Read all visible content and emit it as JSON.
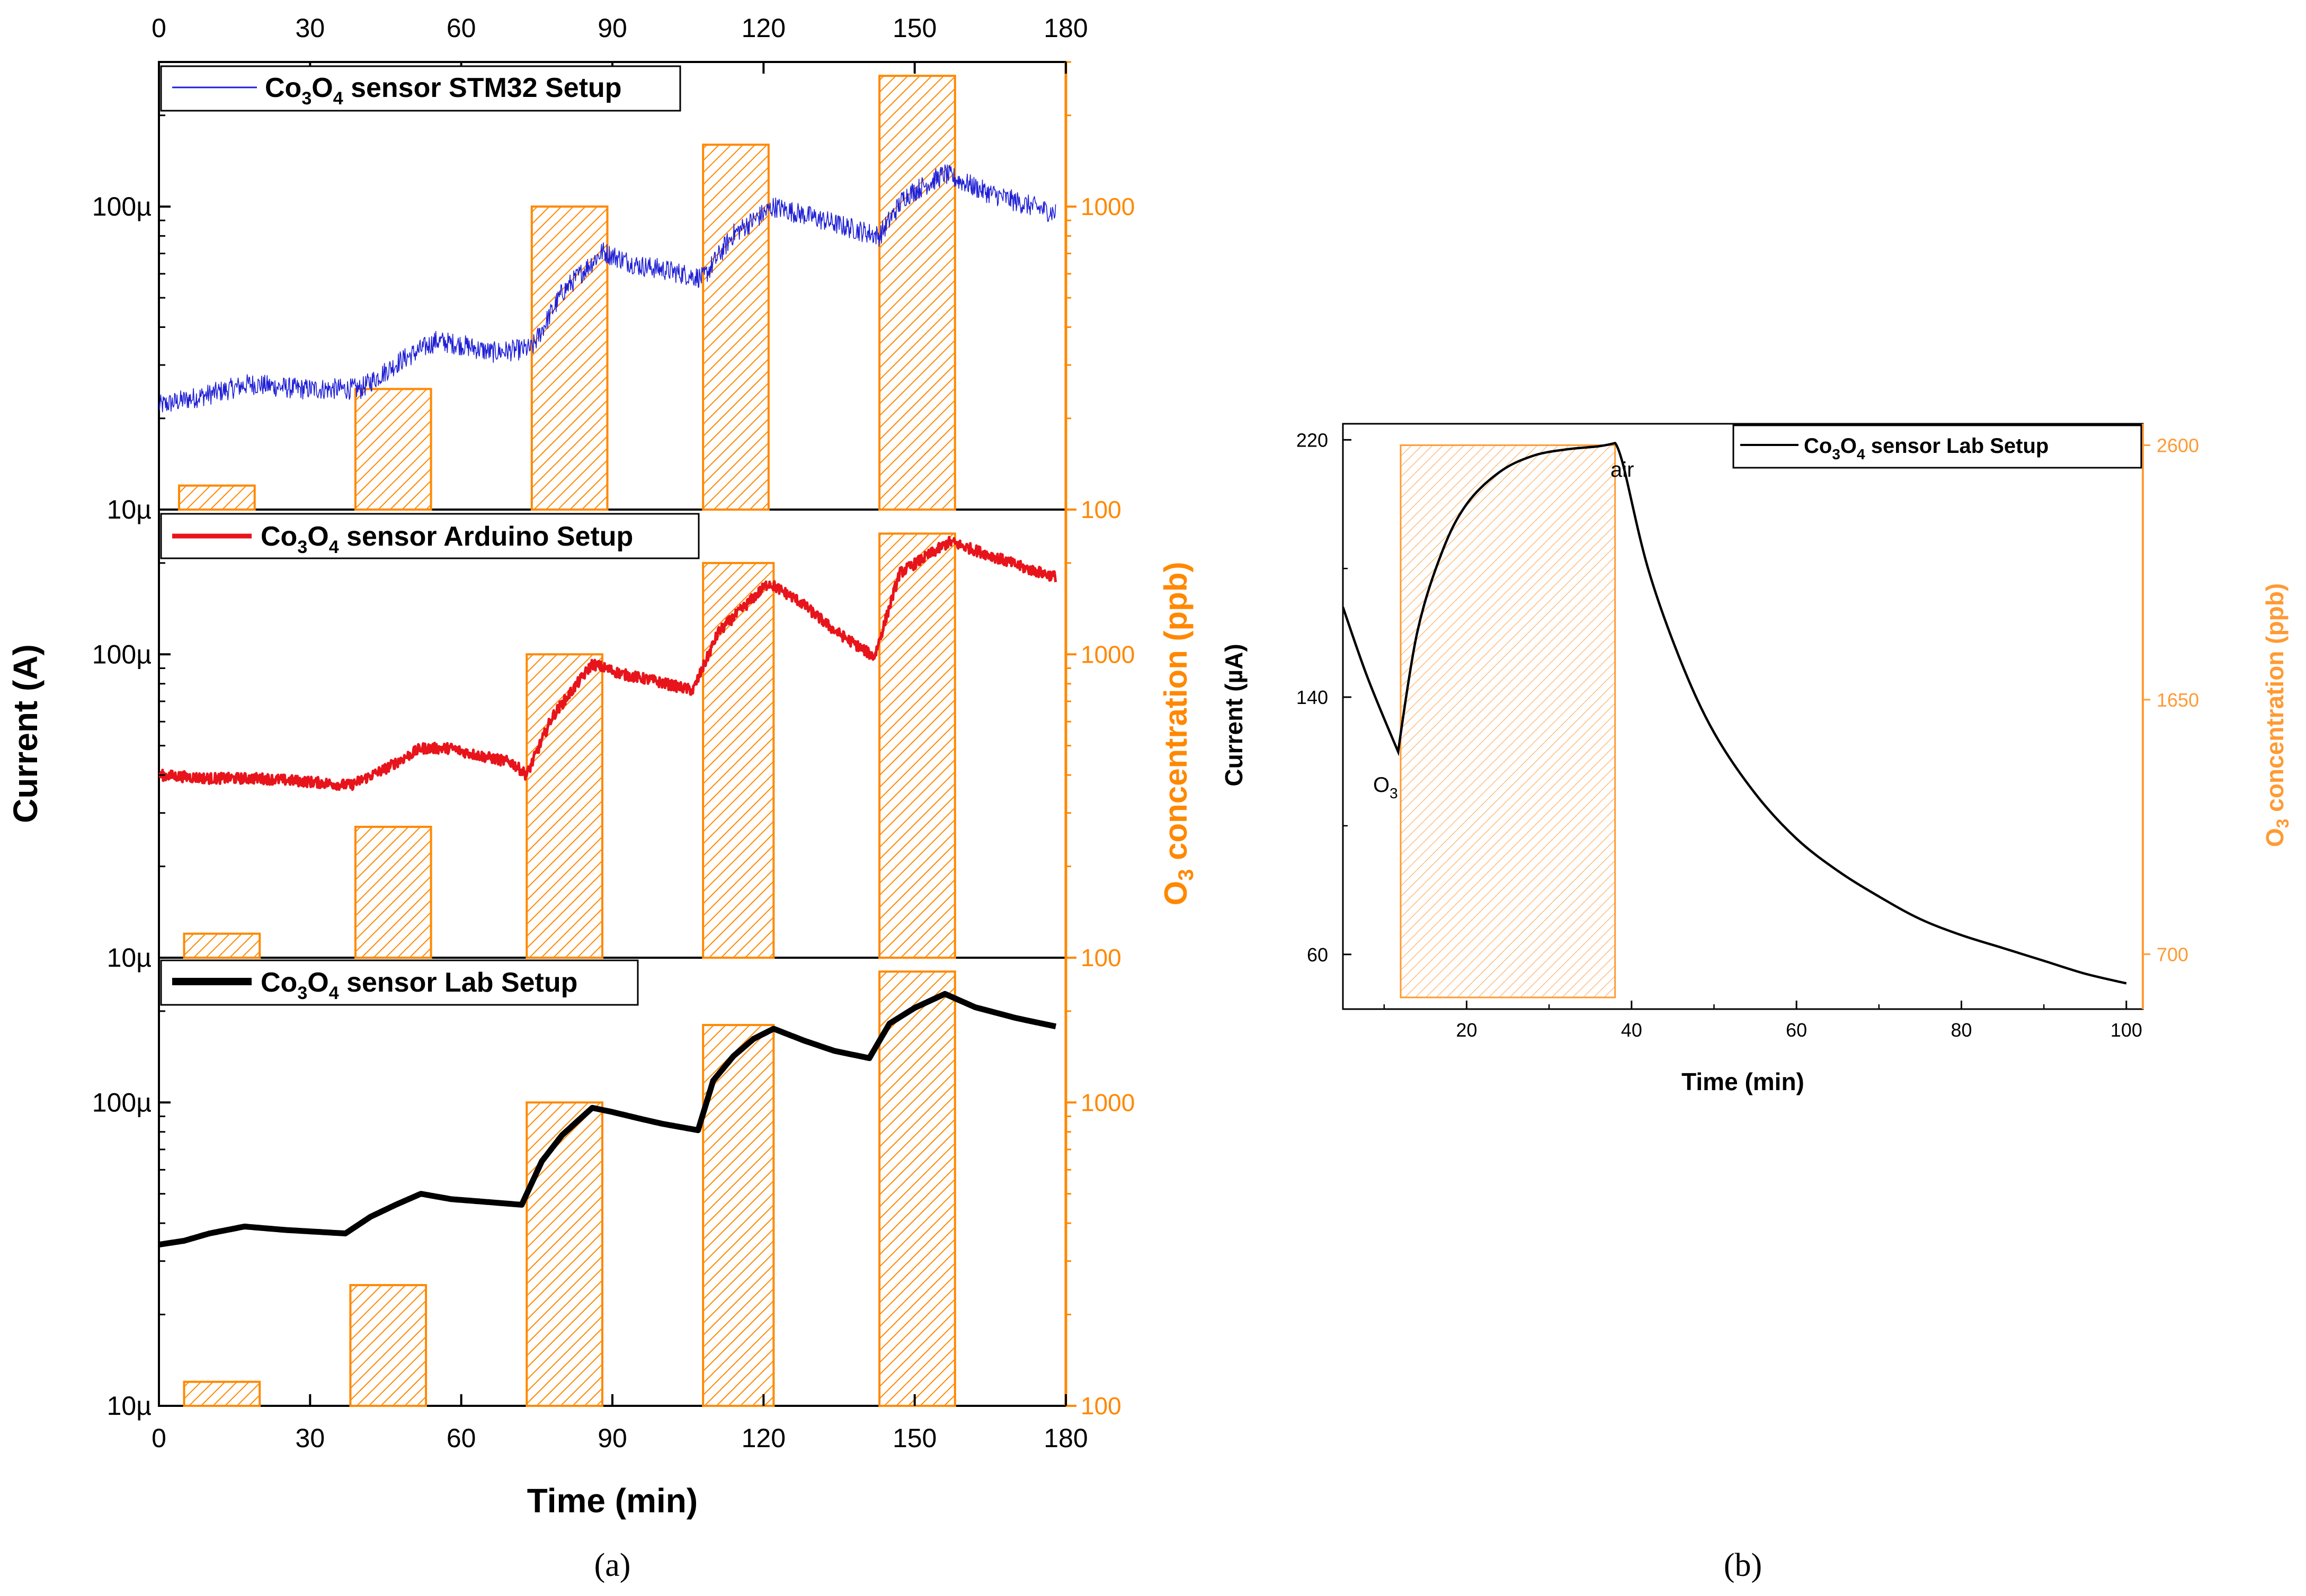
{
  "chart_data": [
    {
      "panel": "a",
      "type": "line",
      "panel_label": "(a)",
      "xlabel": "Time (min)",
      "ylabel": "Current (A)",
      "y2label": "O3 concentration (ppb)",
      "y2label_prefix": "O",
      "y2label_sub": "3",
      "y2label_suffix": " concentration (ppb)",
      "xlim": [
        0,
        180
      ],
      "xticks": [
        0,
        30,
        60,
        90,
        120,
        150,
        180
      ],
      "y_scale": "log",
      "ylim": [
        1e-05,
        0.0003
      ],
      "y2lim": [
        100,
        3000
      ],
      "yticks": [
        {
          "value": 1e-05,
          "label": "10µ"
        },
        {
          "value": 0.0001,
          "label": "100µ"
        }
      ],
      "y2ticks": [
        {
          "value": 100,
          "label": "100"
        },
        {
          "value": 1000,
          "label": "1000"
        }
      ],
      "colors": {
        "ozone_bar": "#ff8800",
        "stm32": "#1f1fd6",
        "arduino": "#e8141b",
        "lab": "#000000"
      },
      "subplots": [
        {
          "legend": "Co3O4 sensor STM32 Setup",
          "legend_parts": [
            "Co",
            "3",
            "O",
            "4",
            " sensor STM32 Setup"
          ],
          "color": "#1f1fd6",
          "line_style": "thin-noisy",
          "series": {
            "x": [
              0,
              10,
              18,
              28,
              40,
              48,
              55,
              60,
              66,
              74,
              80,
              88,
              95,
              100,
              108,
              114,
              122,
              130,
              136,
              143,
              148,
              156,
              164,
              170,
              178
            ],
            "y": [
              2.2e-05,
              2.4e-05,
              2.6e-05,
              2.5e-05,
              2.5e-05,
              3.1e-05,
              3.6e-05,
              3.5e-05,
              3.3e-05,
              3.4e-05,
              5.2e-05,
              7.1e-05,
              6.4e-05,
              6.2e-05,
              5.8e-05,
              8.1e-05,
              0.0001,
              9.2e-05,
              8.6e-05,
              8e-05,
              0.000108,
              0.000128,
              0.000112,
              0.000104,
              9.5e-05
            ]
          },
          "ozone_bars": [
            {
              "start": 4,
              "end": 19,
              "ppb": 120
            },
            {
              "start": 39,
              "end": 54,
              "ppb": 250
            },
            {
              "start": 74,
              "end": 89,
              "ppb": 1000
            },
            {
              "start": 108,
              "end": 121,
              "ppb": 1600
            },
            {
              "start": 143,
              "end": 158,
              "ppb": 2700
            }
          ]
        },
        {
          "legend": "Co3O4 sensor Arduino Setup",
          "legend_parts": [
            "Co",
            "3",
            "O",
            "4",
            " sensor Arduino Setup"
          ],
          "color": "#e8141b",
          "line_style": "medium-noisy",
          "series": {
            "x": [
              0,
              10,
              20,
              30,
              38,
              45,
              52,
              58,
              62,
              70,
              73,
              78,
              86,
              92,
              98,
              106,
              111,
              121,
              127,
              134,
              142,
              147,
              157,
              165,
              172,
              178
            ],
            "y": [
              4e-05,
              3.9e-05,
              3.9e-05,
              3.8e-05,
              3.7e-05,
              4.2e-05,
              4.9e-05,
              4.9e-05,
              4.7e-05,
              4.4e-05,
              4e-05,
              6.2e-05,
              9.3e-05,
              8.6e-05,
              8.2e-05,
              7.6e-05,
              0.000118,
              0.000172,
              0.00015,
              0.00012,
              9.8e-05,
              0.000185,
              0.000235,
              0.000212,
              0.000192,
              0.00018
            ]
          },
          "ozone_bars": [
            {
              "start": 5,
              "end": 20,
              "ppb": 120
            },
            {
              "start": 39,
              "end": 54,
              "ppb": 270
            },
            {
              "start": 73,
              "end": 88,
              "ppb": 1000
            },
            {
              "start": 108,
              "end": 122,
              "ppb": 2000
            },
            {
              "start": 143,
              "end": 158,
              "ppb": 2500
            }
          ]
        },
        {
          "legend": "Co3O4 sensor Lab Setup",
          "legend_parts": [
            "Co",
            "3",
            "O",
            "4",
            " sensor Lab Setup"
          ],
          "color": "#000000",
          "line_style": "thick-smooth",
          "series": {
            "x": [
              0,
              5,
              10,
              17,
              25,
              37,
              42,
              47,
              52,
              58,
              65,
              72,
              76,
              80,
              86,
              90,
              96,
              100,
              107,
              110,
              114,
              118,
              122,
              128,
              134,
              141,
              145,
              150,
              156,
              162,
              170,
              178
            ],
            "y": [
              3.4e-05,
              3.5e-05,
              3.7e-05,
              3.9e-05,
              3.8e-05,
              3.7e-05,
              4.2e-05,
              4.6e-05,
              5e-05,
              4.8e-05,
              4.7e-05,
              4.6e-05,
              6.4e-05,
              7.8e-05,
              9.6e-05,
              9.3e-05,
              8.8e-05,
              8.5e-05,
              8.1e-05,
              0.000118,
              0.000142,
              0.000162,
              0.000175,
              0.00016,
              0.000148,
              0.00014,
              0.000182,
              0.000205,
              0.000228,
              0.000206,
              0.00019,
              0.000178
            ]
          },
          "ozone_bars": [
            {
              "start": 5,
              "end": 20,
              "ppb": 120
            },
            {
              "start": 38,
              "end": 53,
              "ppb": 250
            },
            {
              "start": 73,
              "end": 88,
              "ppb": 1000
            },
            {
              "start": 108,
              "end": 122,
              "ppb": 1800
            },
            {
              "start": 143,
              "end": 158,
              "ppb": 2700
            }
          ]
        }
      ]
    },
    {
      "panel": "b",
      "type": "line",
      "panel_label": "(b)",
      "xlabel": "Time (min)",
      "ylabel": "Current (µA)",
      "ylabel_parts": [
        "Current (",
        "µ",
        "A)"
      ],
      "y2label": "O3 concentration (ppb)",
      "y2label_prefix": "O",
      "y2label_sub": "3",
      "y2label_suffix": " concentration (ppb)",
      "legend": "Co3O4 sensor Lab Setup",
      "legend_parts": [
        "Co",
        "3",
        "O",
        "4",
        " sensor Lab Setup"
      ],
      "xlim": [
        5,
        102
      ],
      "xticks": [
        20,
        40,
        60,
        80,
        100
      ],
      "ylim": [
        43,
        225
      ],
      "yticks": [
        60,
        140,
        220
      ],
      "y2lim": [
        495,
        2680
      ],
      "y2ticks": [
        700,
        1650,
        2600
      ],
      "color": "#000000",
      "bar_color": "#ff9a33",
      "series": {
        "x": [
          5,
          8,
          11.7,
          14,
          17,
          20,
          24,
          28,
          32,
          36,
          38,
          39,
          42,
          46,
          50,
          55,
          60,
          65,
          70,
          75,
          80,
          85,
          90,
          95,
          100
        ],
        "y": [
          168,
          146,
          123,
          160,
          185,
          200,
          210,
          215,
          217,
          218,
          219,
          212,
          180,
          151,
          129,
          110,
          96,
          86,
          78,
          71,
          66,
          62,
          58,
          54,
          51
        ],
        "y2_ppb": [
          null,
          null,
          null,
          null,
          null,
          null,
          null,
          null,
          null,
          null,
          null,
          null,
          null,
          null,
          null,
          null,
          null,
          null,
          null,
          null,
          null,
          null,
          null,
          null,
          null
        ]
      },
      "ozone_bars": [
        {
          "start": 12,
          "end": 38,
          "ppb": 2600
        }
      ],
      "annotations": [
        {
          "text": "air",
          "x": 38,
          "y": 219
        },
        {
          "text": "O3",
          "text_parts": [
            "O",
            "3"
          ],
          "x": 11.7,
          "y": 123
        }
      ]
    }
  ]
}
